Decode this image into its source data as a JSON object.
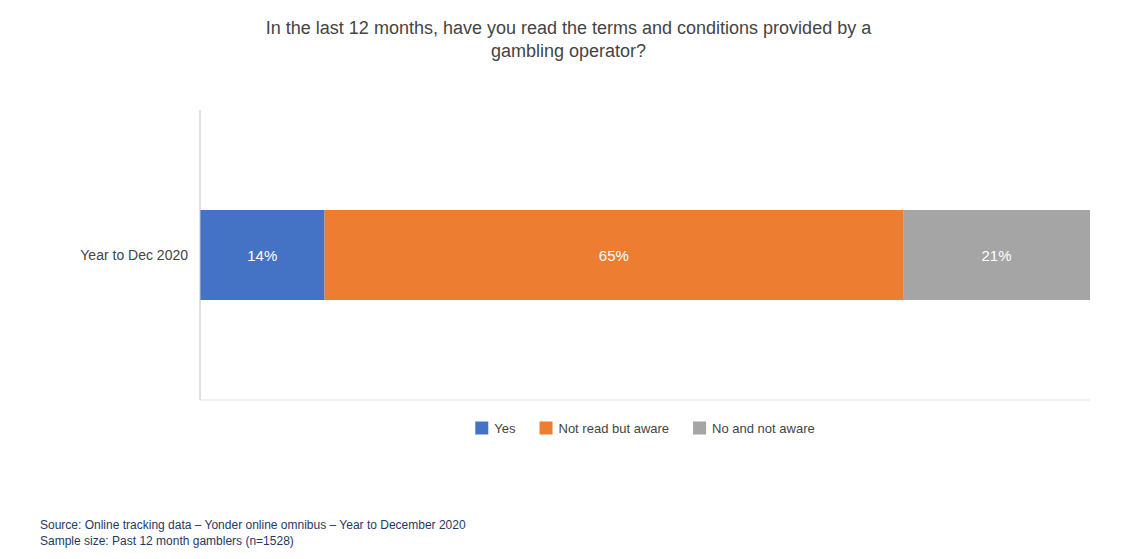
{
  "chart_data": {
    "type": "bar",
    "orientation": "horizontal",
    "stacked": true,
    "title": "In the last 12 months, have you read the terms and conditions provided by a\ngambling operator?",
    "categories": [
      "Year to Dec 2020"
    ],
    "series": [
      {
        "name": "Yes",
        "color": "#4472C4",
        "values": [
          14
        ],
        "value_labels": [
          "14%"
        ]
      },
      {
        "name": "Not read but aware",
        "color": "#ED7D31",
        "values": [
          65
        ],
        "value_labels": [
          "65%"
        ]
      },
      {
        "name": "No and not aware",
        "color": "#A5A5A5",
        "values": [
          21
        ],
        "value_labels": [
          "21%"
        ]
      }
    ],
    "xlim": [
      0,
      100
    ],
    "data_labels": true,
    "tick_labels": "y",
    "legend": "bottom",
    "annotations": [
      "Source: Online tracking data – Yonder online omnibus – Year to December 2020\nSample size: Past 12 month gamblers (n=1528)"
    ]
  }
}
